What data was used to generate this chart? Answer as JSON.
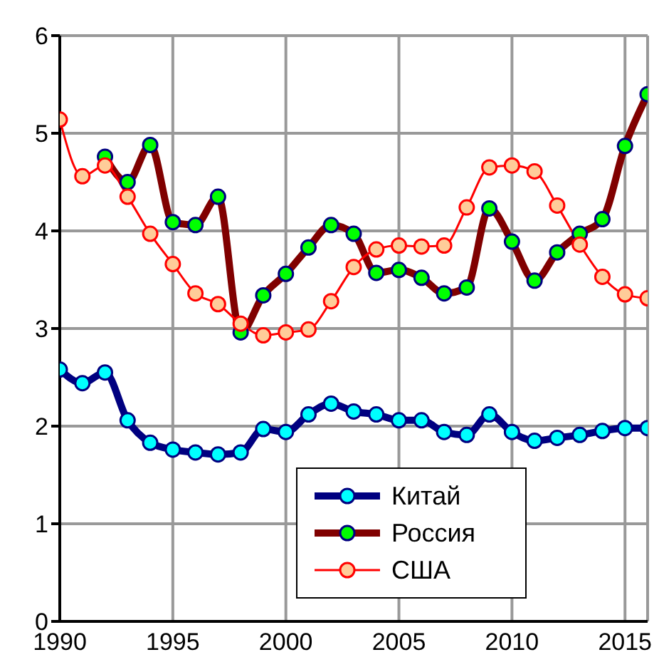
{
  "chart_data": {
    "type": "line",
    "x": [
      1990,
      1991,
      1992,
      1993,
      1994,
      1995,
      1996,
      1997,
      1998,
      1999,
      2000,
      2001,
      2002,
      2003,
      2004,
      2005,
      2006,
      2007,
      2008,
      2009,
      2010,
      2011,
      2012,
      2013,
      2014,
      2015,
      2016
    ],
    "xlim": [
      1990,
      2016
    ],
    "xticks": [
      1990,
      1995,
      2000,
      2005,
      2010,
      2015
    ],
    "ylim": [
      0,
      6
    ],
    "yticks": [
      0,
      1,
      2,
      3,
      4,
      5,
      6
    ],
    "grid": true,
    "legend": "bottom right",
    "marker": "circle",
    "line_style": "solid",
    "series": [
      {
        "name": "Китай",
        "color": "#000080",
        "values": [
          2.58,
          2.44,
          2.55,
          2.06,
          1.83,
          1.76,
          1.73,
          1.71,
          1.73,
          1.97,
          1.94,
          2.12,
          2.23,
          2.15,
          2.12,
          2.06,
          2.06,
          1.94,
          1.91,
          2.12,
          1.94,
          1.85,
          1.88,
          1.91,
          1.95,
          1.98,
          1.98
        ]
      },
      {
        "name": "Россия",
        "color": "#800000",
        "values": [
          null,
          null,
          4.76,
          4.5,
          4.88,
          4.09,
          4.06,
          4.35,
          2.96,
          3.34,
          3.56,
          3.83,
          4.06,
          3.97,
          3.57,
          3.6,
          3.52,
          3.36,
          3.42,
          4.23,
          3.89,
          3.49,
          3.78,
          3.97,
          4.12,
          4.87,
          5.4
        ]
      },
      {
        "name": "США",
        "color": "#ff0000",
        "values": [
          5.14,
          4.56,
          4.67,
          4.35,
          3.97,
          3.66,
          3.36,
          3.25,
          3.05,
          2.93,
          2.96,
          2.99,
          3.28,
          3.63,
          3.81,
          3.85,
          3.84,
          3.85,
          4.24,
          4.65,
          4.67,
          4.61,
          4.26,
          3.86,
          3.53,
          3.35,
          3.31
        ]
      }
    ]
  }
}
